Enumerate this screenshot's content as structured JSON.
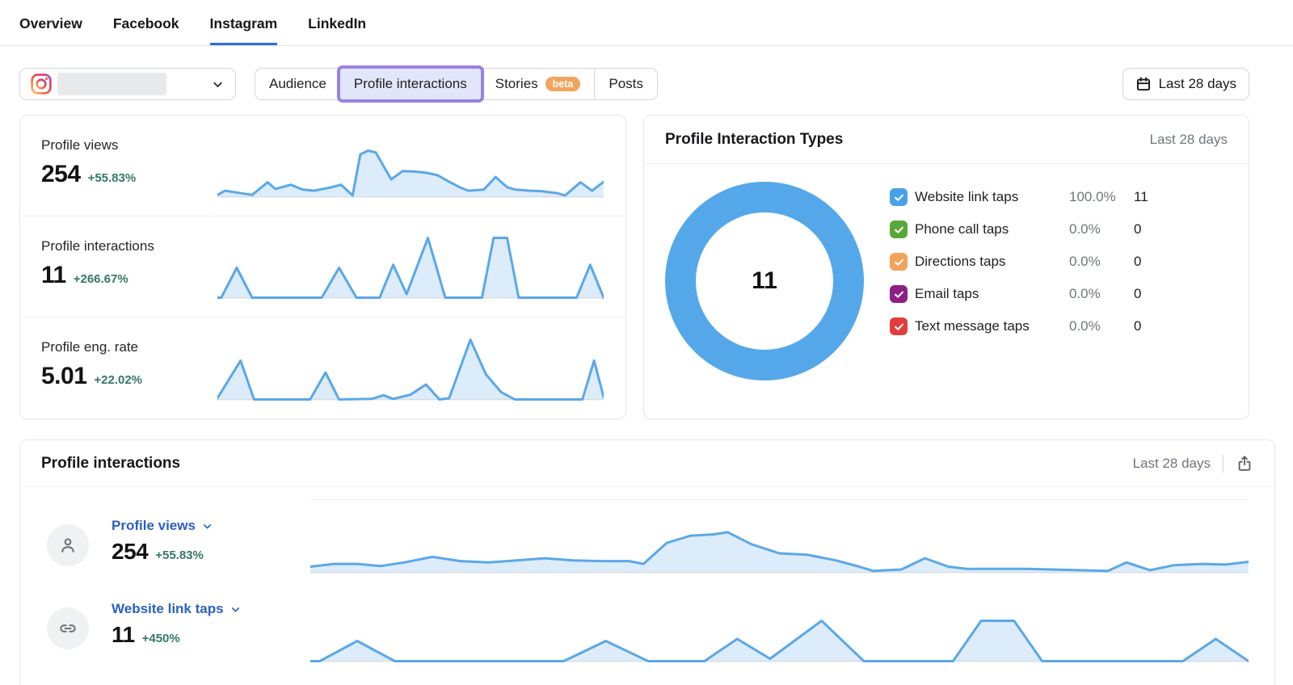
{
  "nav": {
    "tabs": [
      {
        "label": "Overview",
        "active": false
      },
      {
        "label": "Facebook",
        "active": false
      },
      {
        "label": "Instagram",
        "active": true
      },
      {
        "label": "LinkedIn",
        "active": false
      }
    ]
  },
  "toolbar": {
    "account": {
      "platform": "instagram",
      "name_redacted": true
    },
    "tabs": [
      {
        "label": "Audience",
        "highlighted": false
      },
      {
        "label": "Profile interactions",
        "highlighted": true
      },
      {
        "label": "Stories",
        "badge": "beta",
        "highlighted": false
      },
      {
        "label": "Posts",
        "highlighted": false
      }
    ],
    "date_range": {
      "label": "Last 28 days"
    }
  },
  "metrics_card": {
    "rows": [
      {
        "label": "Profile views",
        "value": "254",
        "change": "+55.83%"
      },
      {
        "label": "Profile interactions",
        "value": "11",
        "change": "+266.67%"
      },
      {
        "label": "Profile eng. rate",
        "value": "5.01",
        "change": "+22.02%"
      }
    ]
  },
  "interaction_types_card": {
    "title": "Profile Interaction Types",
    "period": "Last 28 days",
    "donut": {
      "total": "11",
      "color": "#54a8ea"
    },
    "legend": [
      {
        "label": "Website link taps",
        "percent": "100.0%",
        "count": "11",
        "color": "#4aa0e8"
      },
      {
        "label": "Phone call taps",
        "percent": "0.0%",
        "count": "0",
        "color": "#57a839"
      },
      {
        "label": "Directions taps",
        "percent": "0.0%",
        "count": "0",
        "color": "#f2a45c"
      },
      {
        "label": "Email taps",
        "percent": "0.0%",
        "count": "0",
        "color": "#8d1f86"
      },
      {
        "label": "Text message taps",
        "percent": "0.0%",
        "count": "0",
        "color": "#e23d3d"
      }
    ]
  },
  "interactions_card": {
    "title": "Profile interactions",
    "period": "Last 28 days",
    "rows": [
      {
        "metric": "Profile views",
        "value": "254",
        "change": "+55.83%"
      },
      {
        "metric": "Website link taps",
        "value": "11",
        "change": "+450%"
      }
    ]
  },
  "chart_data": [
    {
      "id": "spark-views",
      "type": "area",
      "title": "Profile views sparkline (last 28 days)",
      "total": 254,
      "points": [
        [
          0,
          0.03
        ],
        [
          0.02,
          0.1
        ],
        [
          0.05,
          0.07
        ],
        [
          0.09,
          0.03
        ],
        [
          0.13,
          0.24
        ],
        [
          0.15,
          0.13
        ],
        [
          0.19,
          0.2
        ],
        [
          0.22,
          0.12
        ],
        [
          0.25,
          0.1
        ],
        [
          0.29,
          0.15
        ],
        [
          0.32,
          0.2
        ],
        [
          0.35,
          0.02
        ],
        [
          0.37,
          0.71
        ],
        [
          0.39,
          0.77
        ],
        [
          0.41,
          0.74
        ],
        [
          0.45,
          0.29
        ],
        [
          0.48,
          0.43
        ],
        [
          0.51,
          0.42
        ],
        [
          0.54,
          0.4
        ],
        [
          0.57,
          0.36
        ],
        [
          0.6,
          0.25
        ],
        [
          0.63,
          0.15
        ],
        [
          0.65,
          0.1
        ],
        [
          0.69,
          0.12
        ],
        [
          0.72,
          0.33
        ],
        [
          0.75,
          0.16
        ],
        [
          0.77,
          0.12
        ],
        [
          0.81,
          0.1
        ],
        [
          0.84,
          0.09
        ],
        [
          0.88,
          0.06
        ],
        [
          0.9,
          0.02
        ],
        [
          0.94,
          0.24
        ],
        [
          0.97,
          0.1
        ],
        [
          1,
          0.25
        ]
      ]
    },
    {
      "id": "spark-interactions",
      "type": "area",
      "title": "Profile interactions sparkline (last 28 days)",
      "total": 11,
      "points": [
        [
          0,
          0
        ],
        [
          0.01,
          0
        ],
        [
          0.05,
          0.5
        ],
        [
          0.09,
          0
        ],
        [
          0.27,
          0
        ],
        [
          0.315,
          0.5
        ],
        [
          0.36,
          0
        ],
        [
          0.42,
          0
        ],
        [
          0.455,
          0.55
        ],
        [
          0.49,
          0.06
        ],
        [
          0.545,
          1
        ],
        [
          0.59,
          0
        ],
        [
          0.685,
          0
        ],
        [
          0.715,
          1
        ],
        [
          0.75,
          1
        ],
        [
          0.78,
          0
        ],
        [
          0.93,
          0
        ],
        [
          0.965,
          0.55
        ],
        [
          1,
          0
        ]
      ]
    },
    {
      "id": "spark-eng",
      "type": "area",
      "title": "Profile eng. rate sparkline (last 28 days)",
      "total": 5.01,
      "points": [
        [
          0,
          0.02
        ],
        [
          0.06,
          0.65
        ],
        [
          0.095,
          0
        ],
        [
          0.24,
          0
        ],
        [
          0.28,
          0.45
        ],
        [
          0.315,
          0
        ],
        [
          0.4,
          0.01
        ],
        [
          0.43,
          0.07
        ],
        [
          0.455,
          0.01
        ],
        [
          0.5,
          0.08
        ],
        [
          0.54,
          0.25
        ],
        [
          0.575,
          0
        ],
        [
          0.6,
          0.02
        ],
        [
          0.655,
          1
        ],
        [
          0.695,
          0.42
        ],
        [
          0.735,
          0.12
        ],
        [
          0.77,
          0
        ],
        [
          0.945,
          0
        ],
        [
          0.975,
          0.65
        ],
        [
          1,
          0.04
        ]
      ]
    },
    {
      "id": "big-views",
      "type": "area",
      "title": "Profile views (last 28 days)",
      "total": 254,
      "points": [
        [
          0,
          0.08
        ],
        [
          0.025,
          0.12
        ],
        [
          0.05,
          0.12
        ],
        [
          0.075,
          0.09
        ],
        [
          0.1,
          0.14
        ],
        [
          0.13,
          0.22
        ],
        [
          0.16,
          0.16
        ],
        [
          0.19,
          0.14
        ],
        [
          0.22,
          0.17
        ],
        [
          0.25,
          0.2
        ],
        [
          0.28,
          0.17
        ],
        [
          0.31,
          0.16
        ],
        [
          0.34,
          0.16
        ],
        [
          0.355,
          0.12
        ],
        [
          0.38,
          0.42
        ],
        [
          0.405,
          0.52
        ],
        [
          0.43,
          0.54
        ],
        [
          0.445,
          0.57
        ],
        [
          0.47,
          0.4
        ],
        [
          0.5,
          0.27
        ],
        [
          0.53,
          0.25
        ],
        [
          0.56,
          0.17
        ],
        [
          0.585,
          0.08
        ],
        [
          0.6,
          0.02
        ],
        [
          0.63,
          0.04
        ],
        [
          0.655,
          0.2
        ],
        [
          0.68,
          0.08
        ],
        [
          0.7,
          0.05
        ],
        [
          0.73,
          0.05
        ],
        [
          0.76,
          0.05
        ],
        [
          0.79,
          0.04
        ],
        [
          0.82,
          0.03
        ],
        [
          0.85,
          0.02
        ],
        [
          0.87,
          0.14
        ],
        [
          0.895,
          0.03
        ],
        [
          0.92,
          0.1
        ],
        [
          0.95,
          0.12
        ],
        [
          0.975,
          0.11
        ],
        [
          1,
          0.15
        ]
      ]
    },
    {
      "id": "big-link-taps",
      "type": "area",
      "title": "Website link taps (last 28 days)",
      "total": 11,
      "points": [
        [
          0,
          0
        ],
        [
          0.01,
          0
        ],
        [
          0.05,
          0.5
        ],
        [
          0.09,
          0
        ],
        [
          0.27,
          0
        ],
        [
          0.315,
          0.5
        ],
        [
          0.36,
          0
        ],
        [
          0.42,
          0
        ],
        [
          0.455,
          0.55
        ],
        [
          0.49,
          0.06
        ],
        [
          0.545,
          1
        ],
        [
          0.59,
          0
        ],
        [
          0.685,
          0
        ],
        [
          0.715,
          1
        ],
        [
          0.75,
          1
        ],
        [
          0.78,
          0
        ],
        [
          0.93,
          0
        ],
        [
          0.965,
          0.55
        ],
        [
          1,
          0
        ]
      ]
    }
  ],
  "colors": {
    "accent_blue": "#2b6fd6",
    "link_blue": "#2a60c2",
    "chart_line": "#5aa8e8",
    "chart_fill": "#ddecfa",
    "baseline": "#c9ccd0",
    "donut_blue": "#54a8ea",
    "green": "#35795f",
    "badge_orange": "#f2a45c",
    "highlight_purple": "#9a82e1",
    "highlight_bg": "#e2e6fa"
  }
}
